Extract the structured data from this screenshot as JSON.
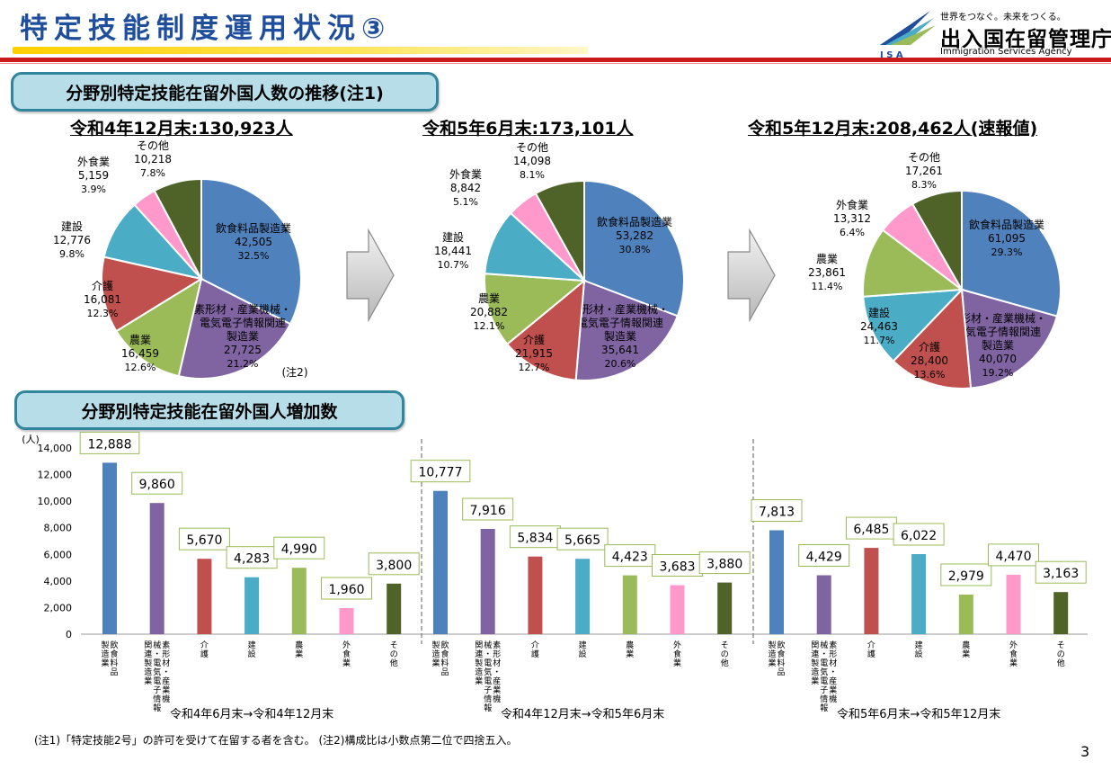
{
  "header": {
    "title": "特定技能制度運用状況③",
    "logo_tagline": "世界をつなぐ。未来をつくる。",
    "logo_name": "出入国在留管理庁",
    "logo_en": "Immigration Services Agency",
    "logo_mark": "I S A",
    "colors": {
      "title": "#1f4e9c",
      "underline": "#ffd000",
      "rule": "#cc1a1a"
    }
  },
  "section1": {
    "title": "分野別特定技能在留外国人数の推移(注1)"
  },
  "section2": {
    "title": "分野別特定技能在留外国人増加数"
  },
  "footnote": "(注1)「特定技能2号」の許可を受けて在留する者を含む。 (注2)構成比は小数点第二位で四捨五入。",
  "page_number": "3",
  "chart_data": [
    {
      "type": "pie",
      "title": "令和4年12月末:130,923人",
      "note": "(注2)",
      "slices": [
        {
          "label": "飲食料品製造業",
          "value": "42,505",
          "pct": "32.5%",
          "n": 32.5,
          "color": "#4f81bd"
        },
        {
          "label": "素形材・産業機械・電気電子情報関連製造業",
          "value": "27,725",
          "pct": "21.2%",
          "n": 21.2,
          "color": "#8064a2"
        },
        {
          "label": "農業",
          "value": "16,459",
          "pct": "12.6%",
          "n": 12.6,
          "color": "#9bbb59"
        },
        {
          "label": "介護",
          "value": "16,081",
          "pct": "12.3%",
          "n": 12.3,
          "color": "#c0504d"
        },
        {
          "label": "建設",
          "value": "12,776",
          "pct": "9.8%",
          "n": 9.8,
          "color": "#4bacc6"
        },
        {
          "label": "外食業",
          "value": "5,159",
          "pct": "3.9%",
          "n": 3.9,
          "color": "#ff99cc"
        },
        {
          "label": "その他",
          "value": "10,218",
          "pct": "7.8%",
          "n": 7.8,
          "color": "#4f6228"
        }
      ]
    },
    {
      "type": "pie",
      "title": "令和5年6月末:173,101人",
      "slices": [
        {
          "label": "飲食料品製造業",
          "value": "53,282",
          "pct": "30.8%",
          "n": 30.8,
          "color": "#4f81bd"
        },
        {
          "label": "素形材・産業機械・電気電子情報関連製造業",
          "value": "35,641",
          "pct": "20.6%",
          "n": 20.6,
          "color": "#8064a2"
        },
        {
          "label": "介護",
          "value": "21,915",
          "pct": "12.7%",
          "n": 12.7,
          "color": "#c0504d"
        },
        {
          "label": "農業",
          "value": "20,882",
          "pct": "12.1%",
          "n": 12.1,
          "color": "#9bbb59"
        },
        {
          "label": "建設",
          "value": "18,441",
          "pct": "10.7%",
          "n": 10.7,
          "color": "#4bacc6"
        },
        {
          "label": "外食業",
          "value": "8,842",
          "pct": "5.1%",
          "n": 5.1,
          "color": "#ff99cc"
        },
        {
          "label": "その他",
          "value": "14,098",
          "pct": "8.1%",
          "n": 8.1,
          "color": "#4f6228"
        }
      ]
    },
    {
      "type": "pie",
      "title": "令和5年12月末:208,462人(速報値)",
      "slices": [
        {
          "label": "飲食料品製造業",
          "value": "61,095",
          "pct": "29.3%",
          "n": 29.3,
          "color": "#4f81bd"
        },
        {
          "label": "素形材・産業機械・電気電子情報関連製造業",
          "value": "40,070",
          "pct": "19.2%",
          "n": 19.2,
          "color": "#8064a2"
        },
        {
          "label": "介護",
          "value": "28,400",
          "pct": "13.6%",
          "n": 13.6,
          "color": "#c0504d"
        },
        {
          "label": "建設",
          "value": "24,463",
          "pct": "11.7%",
          "n": 11.7,
          "color": "#4bacc6"
        },
        {
          "label": "農業",
          "value": "23,861",
          "pct": "11.4%",
          "n": 11.4,
          "color": "#9bbb59"
        },
        {
          "label": "外食業",
          "value": "13,312",
          "pct": "6.4%",
          "n": 6.4,
          "color": "#ff99cc"
        },
        {
          "label": "その他",
          "value": "17,261",
          "pct": "8.3%",
          "n": 8.3,
          "color": "#4f6228"
        }
      ]
    },
    {
      "type": "bar",
      "ylabel": "(人)",
      "ylim": [
        0,
        14000
      ],
      "yticks": [
        "0",
        "2,000",
        "4,000",
        "6,000",
        "8,000",
        "10,000",
        "12,000",
        "14,000"
      ],
      "categories": [
        "飲食料品製造業",
        "素形材・産業機械・電気電子情報関連製造業",
        "介護",
        "建設",
        "農業",
        "外食業",
        "その他"
      ],
      "colors": [
        "#4f81bd",
        "#8064a2",
        "#c0504d",
        "#4bacc6",
        "#9bbb59",
        "#ff99cc",
        "#4f6228"
      ],
      "groups": [
        {
          "name": "令和4年6月末→令和4年12月末",
          "values": [
            12888,
            9860,
            5670,
            4283,
            4990,
            1960,
            3800
          ],
          "labels": [
            "12,888",
            "9,860",
            "5,670",
            "4,283",
            "4,990",
            "1,960",
            "3,800"
          ]
        },
        {
          "name": "令和4年12月末→令和5年6月末",
          "values": [
            10777,
            7916,
            5834,
            5665,
            4423,
            3683,
            3880
          ],
          "labels": [
            "10,777",
            "7,916",
            "5,834",
            "5,665",
            "4,423",
            "3,683",
            "3,880"
          ]
        },
        {
          "name": "令和5年6月末→令和5年12月末",
          "values": [
            7813,
            4429,
            6485,
            6022,
            2979,
            4470,
            3163
          ],
          "labels": [
            "7,813",
            "4,429",
            "6,485",
            "6,022",
            "2,979",
            "4,470",
            "3,163"
          ]
        }
      ]
    }
  ]
}
